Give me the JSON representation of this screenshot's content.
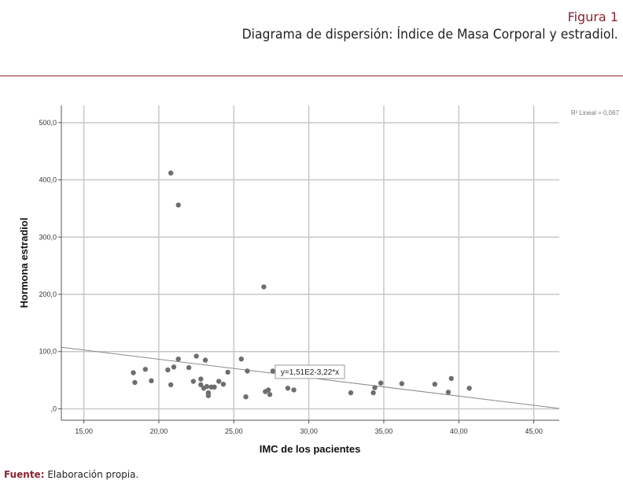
{
  "figure": {
    "label": "Figura 1",
    "title": "Diagrama de dispersión: Índice de Masa Corporal y estradiol."
  },
  "source": {
    "label": "Fuente:",
    "text": "Elaboración propia."
  },
  "chart_data": {
    "type": "scatter",
    "xlabel": "IMC de los pacientes",
    "ylabel": "Hormona estradiol",
    "xlim": [
      13.5,
      46.7
    ],
    "ylim": [
      -20,
      530
    ],
    "x_ticks": [
      15,
      20,
      25,
      30,
      35,
      40,
      45
    ],
    "x_tick_labels": [
      "15,00",
      "20,00",
      "25,00",
      "30,00",
      "35,00",
      "40,00",
      "45,00"
    ],
    "y_ticks": [
      0,
      100,
      200,
      300,
      400,
      500
    ],
    "y_tick_labels": [
      ",0",
      "100,0",
      "200,0",
      "300,0",
      "400,0",
      "500,0"
    ],
    "grid": true,
    "r2_label": "R² Lineal = 0,067",
    "fit_equation": "y=1,51E2-3,22*x",
    "fit_line": {
      "intercept": 151,
      "slope": -3.22
    },
    "marker_color": "#6e6e6e",
    "points": [
      [
        18.3,
        63
      ],
      [
        18.4,
        46
      ],
      [
        19.1,
        69
      ],
      [
        19.5,
        49
      ],
      [
        20.6,
        68
      ],
      [
        20.8,
        42
      ],
      [
        21.0,
        73
      ],
      [
        21.3,
        87
      ],
      [
        20.8,
        412
      ],
      [
        21.3,
        356
      ],
      [
        22.0,
        72
      ],
      [
        22.3,
        48
      ],
      [
        22.5,
        92
      ],
      [
        22.8,
        52
      ],
      [
        22.8,
        42
      ],
      [
        23.0,
        36
      ],
      [
        23.1,
        85
      ],
      [
        23.2,
        39
      ],
      [
        23.3,
        28
      ],
      [
        23.3,
        23
      ],
      [
        23.5,
        38
      ],
      [
        23.7,
        38
      ],
      [
        24.0,
        48
      ],
      [
        24.3,
        43
      ],
      [
        24.6,
        64
      ],
      [
        25.5,
        87
      ],
      [
        25.8,
        21
      ],
      [
        25.9,
        66
      ],
      [
        27.0,
        213
      ],
      [
        27.1,
        30
      ],
      [
        27.3,
        33
      ],
      [
        27.4,
        25
      ],
      [
        27.6,
        66
      ],
      [
        28.6,
        36
      ],
      [
        29.0,
        33
      ],
      [
        32.8,
        28
      ],
      [
        34.3,
        28
      ],
      [
        34.4,
        37
      ],
      [
        34.8,
        45
      ],
      [
        36.2,
        44
      ],
      [
        38.4,
        43
      ],
      [
        39.3,
        29
      ],
      [
        39.5,
        53
      ],
      [
        40.7,
        36
      ]
    ]
  }
}
